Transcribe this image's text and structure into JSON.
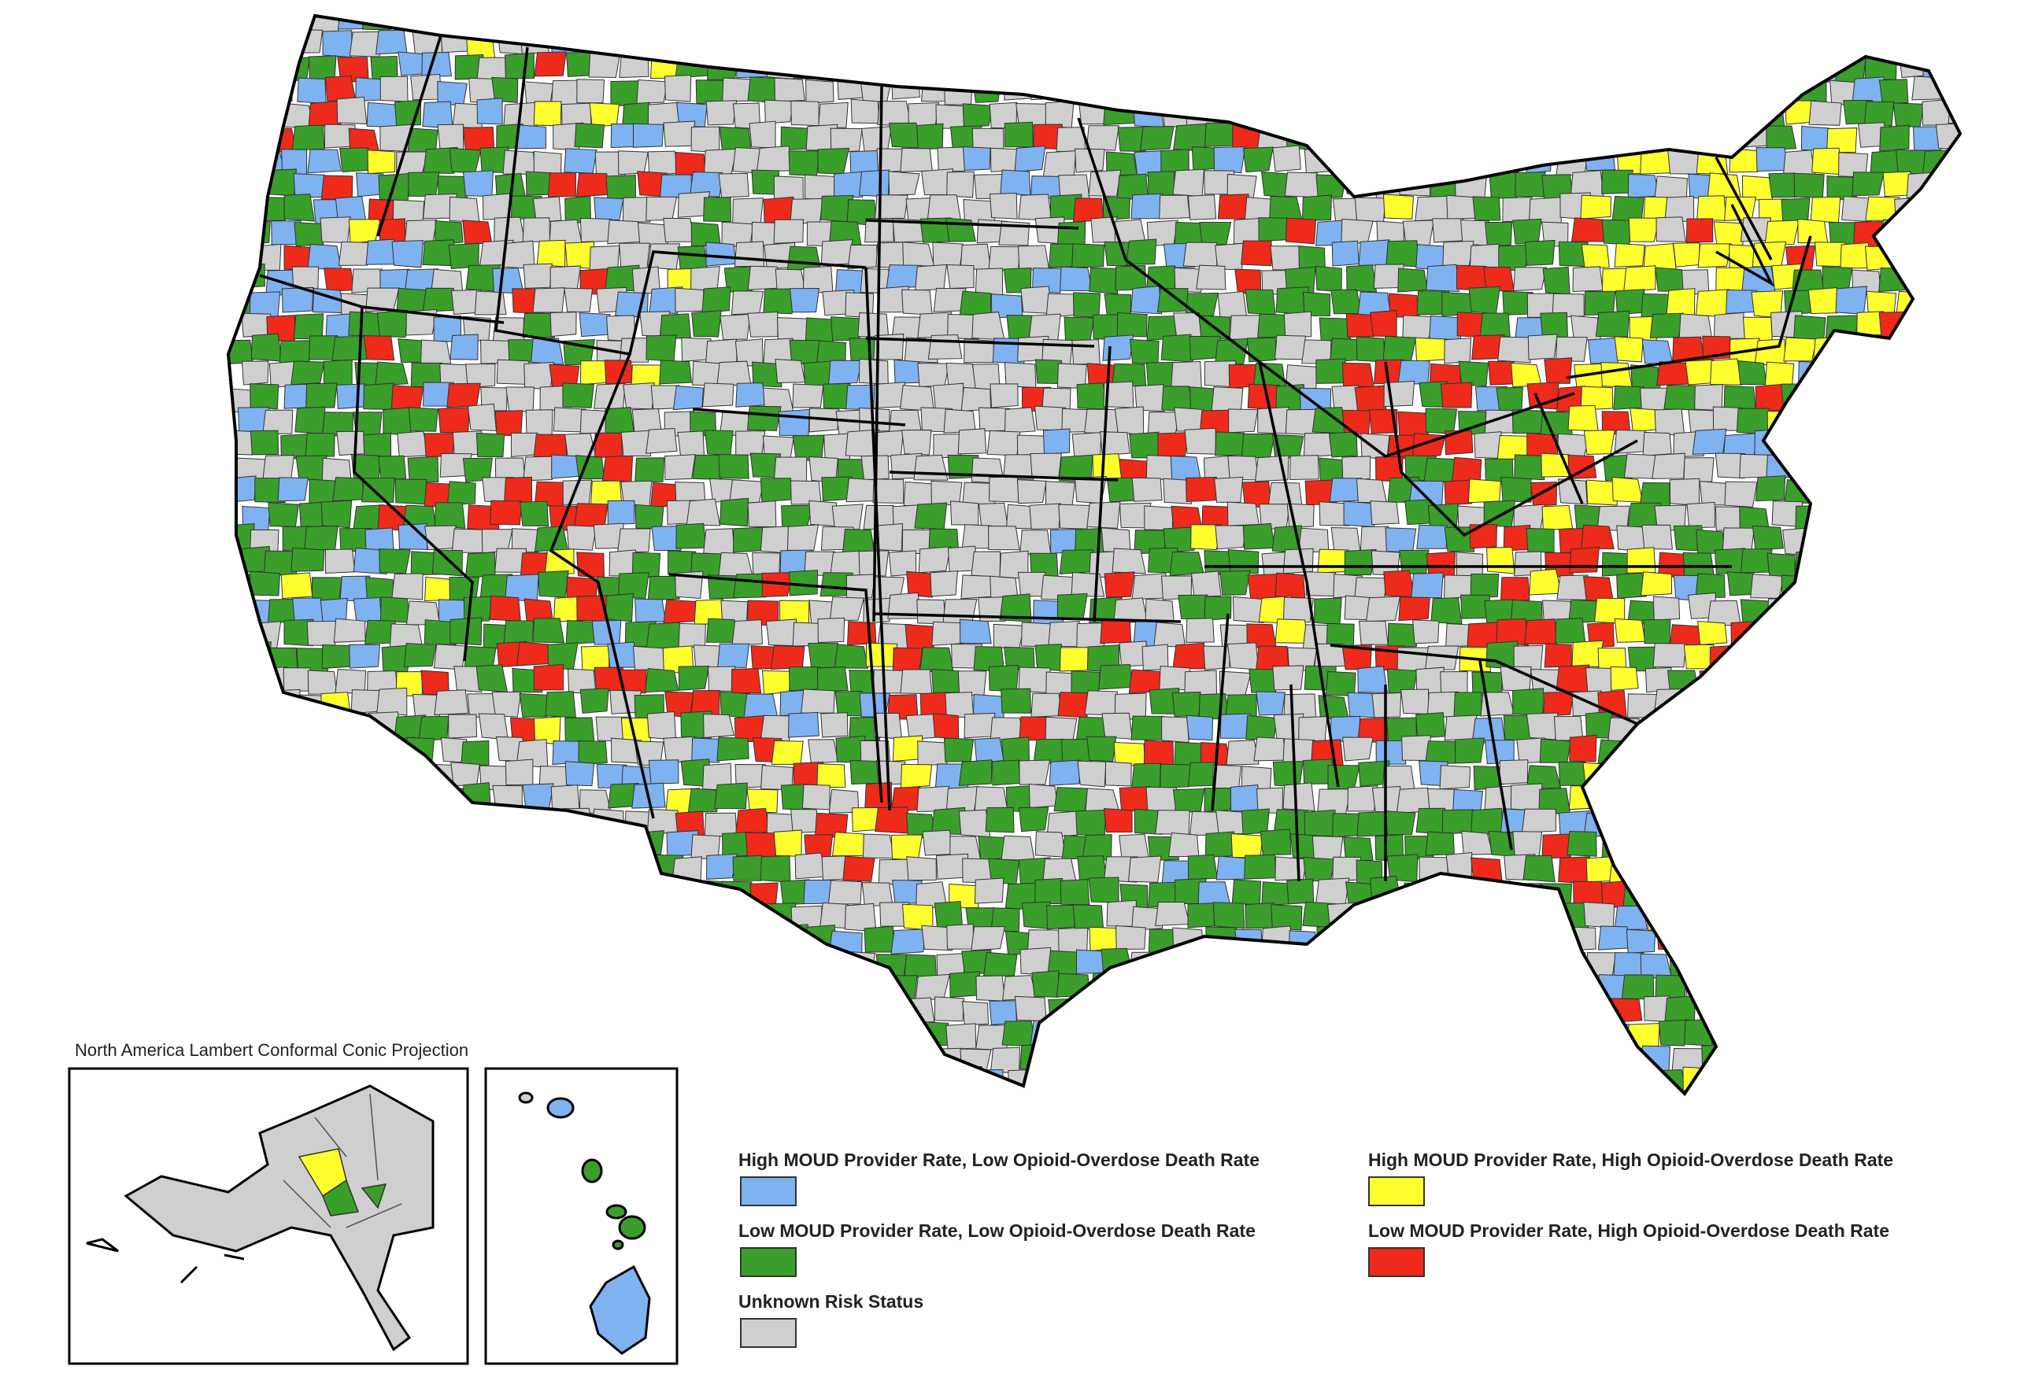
{
  "projection_note": "North America Lambert Conformal Conic Projection",
  "legend": {
    "items": [
      {
        "key": "blue",
        "label": "High MOUD Provider Rate, Low Opioid-Overdose Death Rate",
        "color": "#7fb2f0"
      },
      {
        "key": "green",
        "label": "Low MOUD Provider Rate, Low Opioid-Overdose Death Rate",
        "color": "#3a9e2a"
      },
      {
        "key": "gray",
        "label": "Unknown Risk Status",
        "color": "#cfcfcf"
      },
      {
        "key": "yellow",
        "label": "High MOUD Provider Rate, High Opioid-Overdose Death Rate",
        "color": "#ffff2e"
      },
      {
        "key": "red",
        "label": "Low MOUD Provider Rate, High Opioid-Overdose Death Rate",
        "color": "#ee2a1b"
      }
    ]
  },
  "colors": {
    "county_border": "#333333",
    "state_border": "#000000"
  }
}
